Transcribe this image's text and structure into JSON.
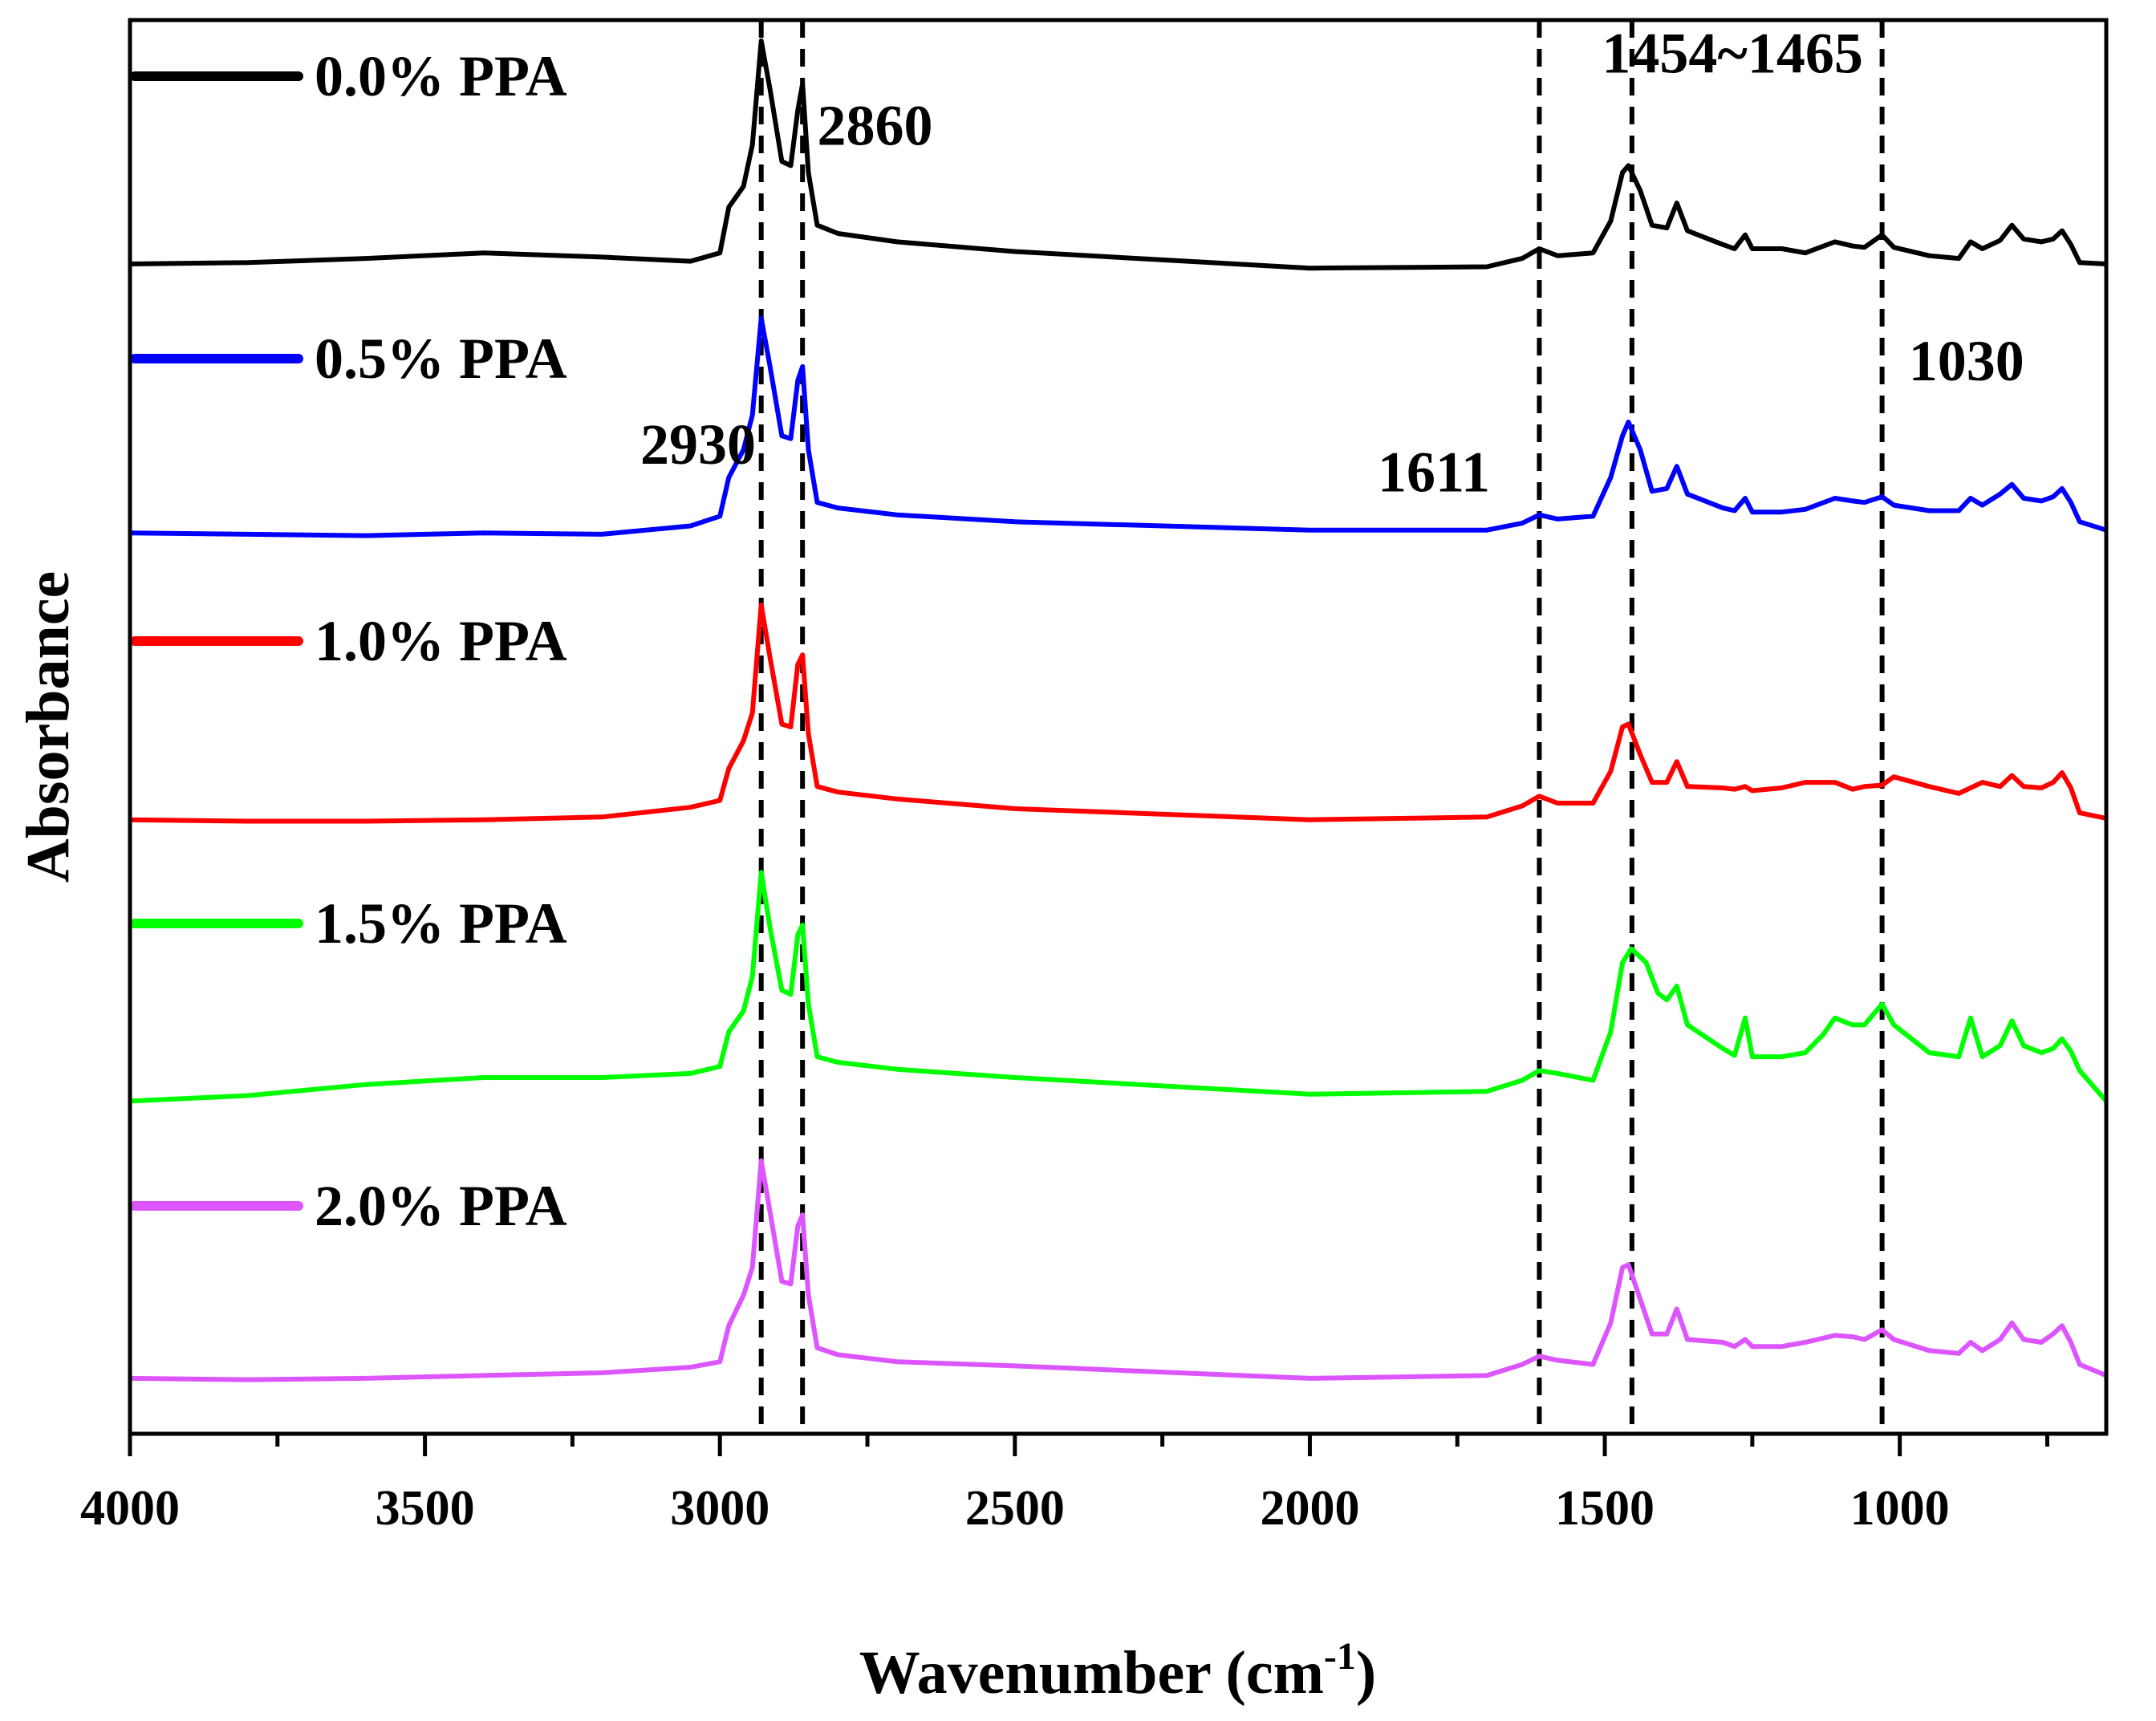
{
  "chart_data": {
    "type": "line",
    "title": "",
    "xlabel": "Wavenumber (cm",
    "xlabel_sup": "-1",
    "xlabel_close": ")",
    "ylabel": "Absorbance",
    "xlim": [
      4000,
      650
    ],
    "x_reversed": true,
    "ylim": [
      0,
      10.2
    ],
    "y_ticks_shown": false,
    "grid": false,
    "x_ticks": [
      4000,
      3500,
      3000,
      2500,
      2000,
      1500,
      1000
    ],
    "legend_position": "inline-left",
    "series": [
      {
        "name": "0.0% PPA",
        "color": "#000000",
        "points": [
          [
            4000,
            8.44
          ],
          [
            3800,
            8.45
          ],
          [
            3600,
            8.48
          ],
          [
            3400,
            8.52
          ],
          [
            3200,
            8.49
          ],
          [
            3050,
            8.46
          ],
          [
            3000,
            8.52
          ],
          [
            2985,
            8.85
          ],
          [
            2960,
            9.0
          ],
          [
            2945,
            9.3
          ],
          [
            2930,
            10.05
          ],
          [
            2915,
            9.7
          ],
          [
            2895,
            9.18
          ],
          [
            2880,
            9.15
          ],
          [
            2868,
            9.55
          ],
          [
            2860,
            9.74
          ],
          [
            2850,
            9.1
          ],
          [
            2835,
            8.72
          ],
          [
            2800,
            8.66
          ],
          [
            2700,
            8.6
          ],
          [
            2500,
            8.53
          ],
          [
            2000,
            8.41
          ],
          [
            1700,
            8.42
          ],
          [
            1640,
            8.48
          ],
          [
            1611,
            8.55
          ],
          [
            1580,
            8.5
          ],
          [
            1520,
            8.52
          ],
          [
            1490,
            8.75
          ],
          [
            1470,
            9.1
          ],
          [
            1460,
            9.15
          ],
          [
            1440,
            8.97
          ],
          [
            1420,
            8.72
          ],
          [
            1395,
            8.7
          ],
          [
            1378,
            8.88
          ],
          [
            1360,
            8.68
          ],
          [
            1300,
            8.58
          ],
          [
            1280,
            8.55
          ],
          [
            1262,
            8.65
          ],
          [
            1250,
            8.55
          ],
          [
            1200,
            8.55
          ],
          [
            1160,
            8.52
          ],
          [
            1110,
            8.6
          ],
          [
            1080,
            8.57
          ],
          [
            1060,
            8.56
          ],
          [
            1030,
            8.65
          ],
          [
            1010,
            8.56
          ],
          [
            950,
            8.5
          ],
          [
            900,
            8.48
          ],
          [
            880,
            8.6
          ],
          [
            860,
            8.55
          ],
          [
            830,
            8.61
          ],
          [
            810,
            8.72
          ],
          [
            790,
            8.62
          ],
          [
            760,
            8.6
          ],
          [
            740,
            8.62
          ],
          [
            725,
            8.68
          ],
          [
            710,
            8.58
          ],
          [
            695,
            8.45
          ],
          [
            650,
            8.44
          ]
        ]
      },
      {
        "name": "0.5% PPA",
        "color": "#0000ff",
        "points": [
          [
            4000,
            6.5
          ],
          [
            3800,
            6.49
          ],
          [
            3600,
            6.48
          ],
          [
            3400,
            6.5
          ],
          [
            3200,
            6.49
          ],
          [
            3050,
            6.55
          ],
          [
            3000,
            6.62
          ],
          [
            2985,
            6.9
          ],
          [
            2960,
            7.1
          ],
          [
            2945,
            7.35
          ],
          [
            2930,
            8.05
          ],
          [
            2915,
            7.7
          ],
          [
            2895,
            7.2
          ],
          [
            2880,
            7.18
          ],
          [
            2868,
            7.6
          ],
          [
            2860,
            7.7
          ],
          [
            2850,
            7.1
          ],
          [
            2835,
            6.72
          ],
          [
            2800,
            6.68
          ],
          [
            2700,
            6.63
          ],
          [
            2500,
            6.58
          ],
          [
            2000,
            6.52
          ],
          [
            1700,
            6.52
          ],
          [
            1640,
            6.57
          ],
          [
            1611,
            6.63
          ],
          [
            1580,
            6.6
          ],
          [
            1520,
            6.62
          ],
          [
            1490,
            6.9
          ],
          [
            1470,
            7.2
          ],
          [
            1460,
            7.3
          ],
          [
            1440,
            7.1
          ],
          [
            1420,
            6.8
          ],
          [
            1395,
            6.82
          ],
          [
            1378,
            6.98
          ],
          [
            1360,
            6.78
          ],
          [
            1300,
            6.68
          ],
          [
            1280,
            6.66
          ],
          [
            1262,
            6.75
          ],
          [
            1250,
            6.65
          ],
          [
            1200,
            6.65
          ],
          [
            1160,
            6.67
          ],
          [
            1110,
            6.75
          ],
          [
            1080,
            6.73
          ],
          [
            1060,
            6.72
          ],
          [
            1030,
            6.76
          ],
          [
            1010,
            6.7
          ],
          [
            950,
            6.66
          ],
          [
            900,
            6.66
          ],
          [
            880,
            6.75
          ],
          [
            860,
            6.7
          ],
          [
            830,
            6.78
          ],
          [
            810,
            6.85
          ],
          [
            790,
            6.75
          ],
          [
            760,
            6.73
          ],
          [
            740,
            6.76
          ],
          [
            725,
            6.82
          ],
          [
            710,
            6.72
          ],
          [
            695,
            6.58
          ],
          [
            650,
            6.52
          ]
        ]
      },
      {
        "name": "1.0% PPA",
        "color": "#ff0000",
        "points": [
          [
            4000,
            4.43
          ],
          [
            3800,
            4.42
          ],
          [
            3600,
            4.42
          ],
          [
            3400,
            4.43
          ],
          [
            3200,
            4.45
          ],
          [
            3050,
            4.52
          ],
          [
            3000,
            4.57
          ],
          [
            2985,
            4.8
          ],
          [
            2960,
            5.0
          ],
          [
            2945,
            5.2
          ],
          [
            2930,
            5.98
          ],
          [
            2915,
            5.6
          ],
          [
            2895,
            5.12
          ],
          [
            2880,
            5.1
          ],
          [
            2868,
            5.55
          ],
          [
            2860,
            5.62
          ],
          [
            2850,
            5.05
          ],
          [
            2835,
            4.67
          ],
          [
            2800,
            4.63
          ],
          [
            2700,
            4.58
          ],
          [
            2500,
            4.51
          ],
          [
            2000,
            4.43
          ],
          [
            1700,
            4.45
          ],
          [
            1640,
            4.53
          ],
          [
            1611,
            4.6
          ],
          [
            1580,
            4.55
          ],
          [
            1520,
            4.55
          ],
          [
            1490,
            4.78
          ],
          [
            1470,
            5.1
          ],
          [
            1460,
            5.12
          ],
          [
            1440,
            4.9
          ],
          [
            1420,
            4.7
          ],
          [
            1395,
            4.7
          ],
          [
            1378,
            4.85
          ],
          [
            1360,
            4.67
          ],
          [
            1300,
            4.66
          ],
          [
            1280,
            4.65
          ],
          [
            1262,
            4.67
          ],
          [
            1250,
            4.64
          ],
          [
            1200,
            4.66
          ],
          [
            1160,
            4.7
          ],
          [
            1110,
            4.7
          ],
          [
            1080,
            4.65
          ],
          [
            1060,
            4.67
          ],
          [
            1030,
            4.68
          ],
          [
            1010,
            4.74
          ],
          [
            950,
            4.67
          ],
          [
            900,
            4.62
          ],
          [
            880,
            4.66
          ],
          [
            860,
            4.7
          ],
          [
            830,
            4.67
          ],
          [
            810,
            4.75
          ],
          [
            790,
            4.67
          ],
          [
            760,
            4.66
          ],
          [
            740,
            4.7
          ],
          [
            725,
            4.77
          ],
          [
            710,
            4.66
          ],
          [
            695,
            4.48
          ],
          [
            650,
            4.44
          ]
        ]
      },
      {
        "name": "1.5% PPA",
        "color": "#00ff00",
        "points": [
          [
            4000,
            2.4
          ],
          [
            3800,
            2.44
          ],
          [
            3600,
            2.52
          ],
          [
            3400,
            2.57
          ],
          [
            3200,
            2.57
          ],
          [
            3050,
            2.6
          ],
          [
            3000,
            2.65
          ],
          [
            2985,
            2.9
          ],
          [
            2960,
            3.05
          ],
          [
            2945,
            3.3
          ],
          [
            2930,
            4.05
          ],
          [
            2915,
            3.65
          ],
          [
            2895,
            3.2
          ],
          [
            2880,
            3.17
          ],
          [
            2868,
            3.6
          ],
          [
            2860,
            3.67
          ],
          [
            2850,
            3.1
          ],
          [
            2835,
            2.72
          ],
          [
            2800,
            2.68
          ],
          [
            2700,
            2.63
          ],
          [
            2500,
            2.57
          ],
          [
            2000,
            2.45
          ],
          [
            1700,
            2.47
          ],
          [
            1640,
            2.55
          ],
          [
            1611,
            2.62
          ],
          [
            1580,
            2.6
          ],
          [
            1520,
            2.55
          ],
          [
            1490,
            2.9
          ],
          [
            1470,
            3.4
          ],
          [
            1455,
            3.5
          ],
          [
            1430,
            3.4
          ],
          [
            1410,
            3.18
          ],
          [
            1395,
            3.13
          ],
          [
            1378,
            3.23
          ],
          [
            1360,
            2.95
          ],
          [
            1300,
            2.78
          ],
          [
            1280,
            2.73
          ],
          [
            1262,
            3.0
          ],
          [
            1250,
            2.72
          ],
          [
            1200,
            2.72
          ],
          [
            1160,
            2.75
          ],
          [
            1130,
            2.88
          ],
          [
            1110,
            3.0
          ],
          [
            1080,
            2.95
          ],
          [
            1060,
            2.95
          ],
          [
            1030,
            3.1
          ],
          [
            1010,
            2.95
          ],
          [
            950,
            2.75
          ],
          [
            900,
            2.72
          ],
          [
            880,
            3.0
          ],
          [
            860,
            2.72
          ],
          [
            830,
            2.8
          ],
          [
            810,
            2.98
          ],
          [
            790,
            2.8
          ],
          [
            760,
            2.75
          ],
          [
            740,
            2.78
          ],
          [
            725,
            2.85
          ],
          [
            710,
            2.76
          ],
          [
            695,
            2.62
          ],
          [
            650,
            2.4
          ]
        ]
      },
      {
        "name": "2.0% PPA",
        "color": "#dd55ff",
        "points": [
          [
            4000,
            0.4
          ],
          [
            3800,
            0.39
          ],
          [
            3600,
            0.4
          ],
          [
            3400,
            0.42
          ],
          [
            3200,
            0.44
          ],
          [
            3050,
            0.48
          ],
          [
            3000,
            0.52
          ],
          [
            2985,
            0.78
          ],
          [
            2960,
            1.0
          ],
          [
            2945,
            1.2
          ],
          [
            2930,
            1.97
          ],
          [
            2915,
            1.6
          ],
          [
            2895,
            1.1
          ],
          [
            2880,
            1.08
          ],
          [
            2868,
            1.5
          ],
          [
            2860,
            1.58
          ],
          [
            2850,
            1.0
          ],
          [
            2835,
            0.62
          ],
          [
            2800,
            0.57
          ],
          [
            2700,
            0.52
          ],
          [
            2500,
            0.49
          ],
          [
            2000,
            0.4
          ],
          [
            1700,
            0.42
          ],
          [
            1640,
            0.5
          ],
          [
            1611,
            0.56
          ],
          [
            1580,
            0.53
          ],
          [
            1520,
            0.5
          ],
          [
            1490,
            0.8
          ],
          [
            1470,
            1.2
          ],
          [
            1460,
            1.22
          ],
          [
            1440,
            0.97
          ],
          [
            1420,
            0.72
          ],
          [
            1395,
            0.72
          ],
          [
            1378,
            0.9
          ],
          [
            1360,
            0.68
          ],
          [
            1300,
            0.66
          ],
          [
            1280,
            0.63
          ],
          [
            1262,
            0.68
          ],
          [
            1250,
            0.63
          ],
          [
            1200,
            0.63
          ],
          [
            1160,
            0.66
          ],
          [
            1110,
            0.71
          ],
          [
            1080,
            0.7
          ],
          [
            1060,
            0.68
          ],
          [
            1030,
            0.75
          ],
          [
            1010,
            0.68
          ],
          [
            950,
            0.6
          ],
          [
            900,
            0.58
          ],
          [
            880,
            0.66
          ],
          [
            860,
            0.6
          ],
          [
            830,
            0.68
          ],
          [
            810,
            0.8
          ],
          [
            790,
            0.68
          ],
          [
            760,
            0.66
          ],
          [
            740,
            0.72
          ],
          [
            725,
            0.78
          ],
          [
            710,
            0.66
          ],
          [
            695,
            0.5
          ],
          [
            650,
            0.42
          ]
        ]
      }
    ],
    "reference_lines": [
      {
        "x": 2930,
        "y_from": 0.0,
        "y_to": 10.2
      },
      {
        "x": 2860,
        "y_from": 0.0,
        "y_to": 10.2
      },
      {
        "x": 1611,
        "y_from": 0.0,
        "y_to": 10.2
      },
      {
        "x": 1454,
        "y_from": 0.0,
        "y_to": 10.2
      },
      {
        "x": 1030,
        "y_from": 0.0,
        "y_to": 10.2
      }
    ],
    "annotations": [
      {
        "text": "2860",
        "x": 2835,
        "y": 9.3
      },
      {
        "text": "2930",
        "x": 3135,
        "y": 7.0
      },
      {
        "text": "1611",
        "x": 1885,
        "y": 6.8
      },
      {
        "text": "1454~1465",
        "x": 1505,
        "y": 9.82
      },
      {
        "text": "1030",
        "x": 985,
        "y": 7.6
      }
    ]
  }
}
